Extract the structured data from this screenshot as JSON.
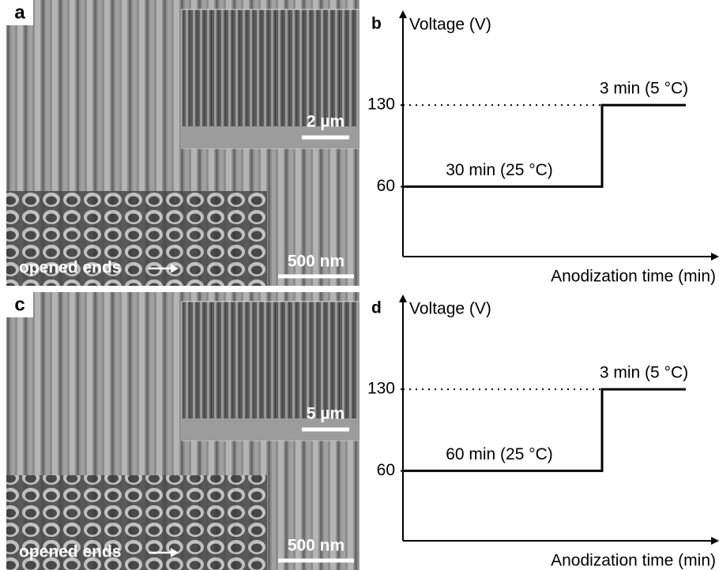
{
  "images": [
    {
      "label": "a",
      "scale_bar": "500 nm",
      "inset_scale_bar": "2 µm",
      "annotation": "opened ends"
    },
    {
      "label": "c",
      "scale_bar": "500 nm",
      "inset_scale_bar": "5 µm",
      "annotation": "opened ends"
    }
  ],
  "chart_data": [
    {
      "type": "step",
      "label": "b",
      "y_label": "Voltage (V)",
      "x_label": "Anodization time (min)",
      "ylim": [
        0,
        210
      ],
      "yticks": [
        60,
        130
      ],
      "stages": [
        {
          "label": "30 min (25 °C)",
          "voltage": 60
        },
        {
          "label": "3 min (5 °C)",
          "voltage": 130
        }
      ]
    },
    {
      "type": "step",
      "label": "d",
      "y_label": "Voltage (V)",
      "x_label": "Anodization time (min)",
      "ylim": [
        0,
        210
      ],
      "yticks": [
        60,
        130
      ],
      "stages": [
        {
          "label": "60 min (25 °C)",
          "voltage": 60
        },
        {
          "label": "3 min (5 °C)",
          "voltage": 130
        }
      ]
    }
  ]
}
